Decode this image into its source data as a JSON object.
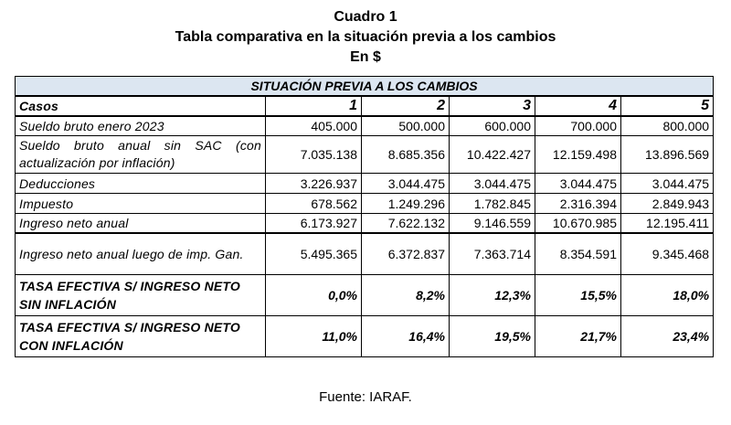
{
  "header": {
    "title": "Cuadro 1",
    "subtitle": "Tabla comparativa en la situación previa a los cambios",
    "unit": "En $"
  },
  "table": {
    "section_title": "SITUACIÓN PREVIA A LOS CAMBIOS",
    "columns_label": "Casos",
    "columns": [
      "1",
      "2",
      "3",
      "4",
      "5"
    ],
    "rows": [
      {
        "label": "Sueldo bruto enero 2023",
        "values": [
          "405.000",
          "500.000",
          "600.000",
          "700.000",
          "800.000"
        ]
      },
      {
        "label": "Sueldo bruto anual sin SAC (con actualización por inflación)",
        "values": [
          "7.035.138",
          "8.685.356",
          "10.422.427",
          "12.159.498",
          "13.896.569"
        ]
      },
      {
        "label": "Deducciones",
        "values": [
          "3.226.937",
          "3.044.475",
          "3.044.475",
          "3.044.475",
          "3.044.475"
        ]
      },
      {
        "label": "Impuesto",
        "values": [
          "678.562",
          "1.249.296",
          "1.782.845",
          "2.316.394",
          "2.849.943"
        ]
      },
      {
        "label": "Ingreso neto anual",
        "values": [
          "6.173.927",
          "7.622.132",
          "9.146.559",
          "10.670.985",
          "12.195.411"
        ]
      },
      {
        "label": "Ingreso neto anual luego de imp. Gan.",
        "values": [
          "5.495.365",
          "6.372.837",
          "7.363.714",
          "8.354.591",
          "9.345.468"
        ]
      },
      {
        "label": "TASA EFECTIVA S/ INGRESO NETO SIN INFLACIÓN",
        "values": [
          "0,0%",
          "8,2%",
          "12,3%",
          "15,5%",
          "18,0%"
        ]
      },
      {
        "label": "TASA EFECTIVA S/ INGRESO NETO CON INFLACIÓN",
        "values": [
          "11,0%",
          "16,4%",
          "19,5%",
          "21,7%",
          "23,4%"
        ]
      }
    ]
  },
  "footer": {
    "source": "Fuente: IARAF."
  }
}
